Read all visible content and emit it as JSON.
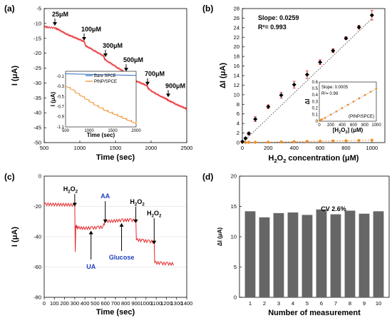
{
  "chart_data": [
    {
      "panel": "(a)",
      "type": "line",
      "xlabel": "Time (sec)",
      "ylabel": "I (μA)",
      "xlim": [
        500,
        2500
      ],
      "ylim": [
        -50,
        -5
      ],
      "x_ticks": [
        "500",
        "1000",
        "1500",
        "2000",
        "2500"
      ],
      "y_ticks": [
        "-5",
        "-10",
        "-15",
        "-20",
        "-25",
        "-30",
        "-35",
        "-40",
        "-45",
        "-50"
      ],
      "series": [
        {
          "color": "#e8262a",
          "x": [
            500,
            560,
            650,
            700,
            760,
            820,
            880,
            940,
            1000,
            1060,
            1090,
            1150,
            1210,
            1270,
            1330,
            1360,
            1420,
            1480,
            1540,
            1600,
            1650,
            1700,
            1760,
            1820,
            1880,
            1940,
            1970,
            2030,
            2090,
            2150,
            2210,
            2240,
            2300,
            2360,
            2420,
            2480,
            2500
          ],
          "y": [
            -11.0,
            -11.3,
            -11.5,
            -12.0,
            -12.8,
            -13.6,
            -14.2,
            -14.8,
            -15.4,
            -16.0,
            -17.6,
            -18.3,
            -19.2,
            -20.0,
            -20.8,
            -22.2,
            -23.1,
            -24.0,
            -25.0,
            -25.8,
            -27.0,
            -28.0,
            -28.8,
            -29.6,
            -30.2,
            -30.8,
            -32.0,
            -33.0,
            -33.8,
            -34.6,
            -35.2,
            -35.8,
            -36.4,
            -37.2,
            -37.8,
            -38.4,
            -38.7
          ]
        }
      ],
      "annotations": [
        {
          "label": "25μM",
          "x": 650,
          "y": -11.5
        },
        {
          "label": "100μM",
          "x": 1060,
          "y": -16.5
        },
        {
          "label": "300μM",
          "x": 1360,
          "y": -22.0
        },
        {
          "label": "500μM",
          "x": 1650,
          "y": -26.8
        },
        {
          "label": "700μM",
          "x": 1950,
          "y": -31.5
        },
        {
          "label": "900μM",
          "x": 2240,
          "y": -35.5
        }
      ],
      "inset": {
        "type": "line",
        "xlabel": "Time (sec)",
        "ylabel": "I (μA)",
        "xlim": [
          500,
          2000
        ],
        "ylim": [
          -1.1,
          0
        ],
        "x_ticks": [
          "500",
          "1000",
          "1500",
          "2000"
        ],
        "y_ticks": [
          "-0.1",
          "-0.3",
          "-0.5",
          "-0.7",
          "-0.9",
          "-1.1"
        ],
        "legend": [
          "Bare SPCE",
          "PtNP/SPCE"
        ],
        "series": [
          {
            "name": "Bare SPCE",
            "color": "#2a6bbf",
            "x": [
              500,
              1000,
              1500,
              2000
            ],
            "y": [
              -0.05,
              -0.06,
              -0.07,
              -0.08
            ]
          },
          {
            "name": "PtNP/SPCE",
            "color": "#f08c24",
            "x": [
              500,
              600,
              700,
              800,
              900,
              1000,
              1100,
              1200,
              1300,
              1400,
              1500,
              1600,
              1700,
              1800,
              1900,
              2000
            ],
            "y": [
              -0.3,
              -0.35,
              -0.42,
              -0.48,
              -0.54,
              -0.6,
              -0.66,
              -0.71,
              -0.76,
              -0.8,
              -0.84,
              -0.88,
              -0.92,
              -0.96,
              -1.0,
              -1.04
            ]
          }
        ]
      }
    },
    {
      "panel": "(b)",
      "type": "scatter",
      "xlabel": "H2O2 concentration (μM)",
      "ylabel": "ΔI (μA)",
      "xlim": [
        0,
        1100
      ],
      "ylim": [
        0,
        28
      ],
      "x_ticks": [
        "0",
        "200",
        "400",
        "600",
        "800",
        "1000"
      ],
      "y_ticks": [
        "0",
        "2",
        "4",
        "6",
        "8",
        "10",
        "12",
        "14",
        "16",
        "18",
        "20",
        "22",
        "24",
        "26",
        "28"
      ],
      "annotation_slope": "Slope: 0.0259",
      "annotation_r2": "R²= 0.993",
      "series": [
        {
          "color": "#000000",
          "x": [
            0,
            25,
            50,
            100,
            200,
            300,
            400,
            500,
            600,
            700,
            800,
            900,
            1000
          ],
          "y": [
            0.2,
            0.9,
            1.9,
            4.9,
            7.5,
            9.9,
            12.1,
            14.2,
            16.8,
            19.2,
            21.8,
            24.1,
            26.6
          ],
          "err": [
            0.1,
            0.2,
            0.3,
            0.5,
            0.4,
            0.6,
            0.7,
            0.8,
            0.5,
            0.4,
            0.3,
            0.4,
            1.0
          ],
          "fit": [
            0,
            1000,
            0,
            25.9
          ]
        },
        {
          "color": "#f08c24",
          "x": [
            0,
            25,
            50,
            100,
            200,
            300,
            400,
            500,
            600,
            700,
            800,
            900,
            1000
          ],
          "y": [
            0.05,
            0.05,
            0.08,
            0.08,
            0.1,
            0.15,
            0.2,
            0.25,
            0.3,
            0.35,
            0.4,
            0.45,
            0.5
          ]
        }
      ],
      "inset": {
        "type": "scatter",
        "xlabel": "[H2O2] (μM)",
        "ylabel": "ΔI",
        "xlim": [
          0,
          1000
        ],
        "ylim": [
          0,
          0.6
        ],
        "x_ticks": [
          "0",
          "200",
          "400",
          "600",
          "800",
          "1000"
        ],
        "y_ticks": [
          "0",
          "0.1",
          "0.2",
          "0.3",
          "0.4",
          "0.5",
          "0.6"
        ],
        "annotation_slope": "Slope: 0.0005",
        "annotation_r2": "R²= 0.99",
        "annotation_label": "(PtNP/SPCE)",
        "series": [
          {
            "color": "#f08c24",
            "x": [
              0,
              25,
              50,
              100,
              200,
              300,
              400,
              500,
              600,
              700,
              800,
              900,
              1000
            ],
            "y": [
              0.01,
              0.02,
              0.03,
              0.05,
              0.1,
              0.15,
              0.2,
              0.25,
              0.3,
              0.35,
              0.4,
              0.45,
              0.5
            ]
          }
        ]
      }
    },
    {
      "panel": "(c)",
      "type": "line",
      "xlabel": "Time (sec)",
      "ylabel": "I (μA)",
      "xlim": [
        0,
        1400
      ],
      "ylim": [
        -80,
        0
      ],
      "x_ticks": [
        "0",
        "100",
        "200",
        "300",
        "400",
        "500",
        "600",
        "700",
        "800",
        "900",
        "1000",
        "1100",
        "1200",
        "1300",
        "1400"
      ],
      "y_ticks": [
        "0",
        "-20",
        "-40",
        "-60",
        "-80"
      ],
      "series": [
        {
          "color": "#e8262a",
          "x": [
            0,
            100,
            200,
            300,
            305,
            310,
            330,
            400,
            460,
            520,
            580,
            600,
            650,
            700,
            760,
            840,
            900,
            905,
            960,
            1020,
            1080,
            1085,
            1140,
            1200,
            1270
          ],
          "y": [
            -18.5,
            -18.7,
            -18.8,
            -19.0,
            -50.0,
            -33.0,
            -34.0,
            -34.4,
            -34.2,
            -34.0,
            -33.5,
            -29.5,
            -29.8,
            -29.5,
            -29.2,
            -29.0,
            -29.3,
            -42.0,
            -42.5,
            -43.0,
            -43.5,
            -57.0,
            -57.5,
            -57.8,
            -58.0
          ]
        }
      ],
      "annotations": [
        {
          "label": "H2O2",
          "x": 300
        },
        {
          "label": "UA",
          "x": 460
        },
        {
          "label": "AA",
          "x": 600
        },
        {
          "label": "Glucose",
          "x": 760
        },
        {
          "label": "H2O2",
          "x": 900
        },
        {
          "label": "H2O2",
          "x": 1080
        }
      ]
    },
    {
      "panel": "(d)",
      "type": "bar",
      "xlabel": "Number of measurement",
      "ylabel": "ΔI (μA)",
      "ylim": [
        0,
        20
      ],
      "y_ticks": [
        "0",
        "5",
        "10",
        "15",
        "20"
      ],
      "categories": [
        "1",
        "2",
        "3",
        "4",
        "5",
        "6",
        "7",
        "8",
        "9",
        "10"
      ],
      "values": [
        14.2,
        13.2,
        13.9,
        14.0,
        13.6,
        14.5,
        13.7,
        14.3,
        13.8,
        14.2
      ],
      "annotation": "CV  2.6%",
      "color": "#666666"
    }
  ]
}
